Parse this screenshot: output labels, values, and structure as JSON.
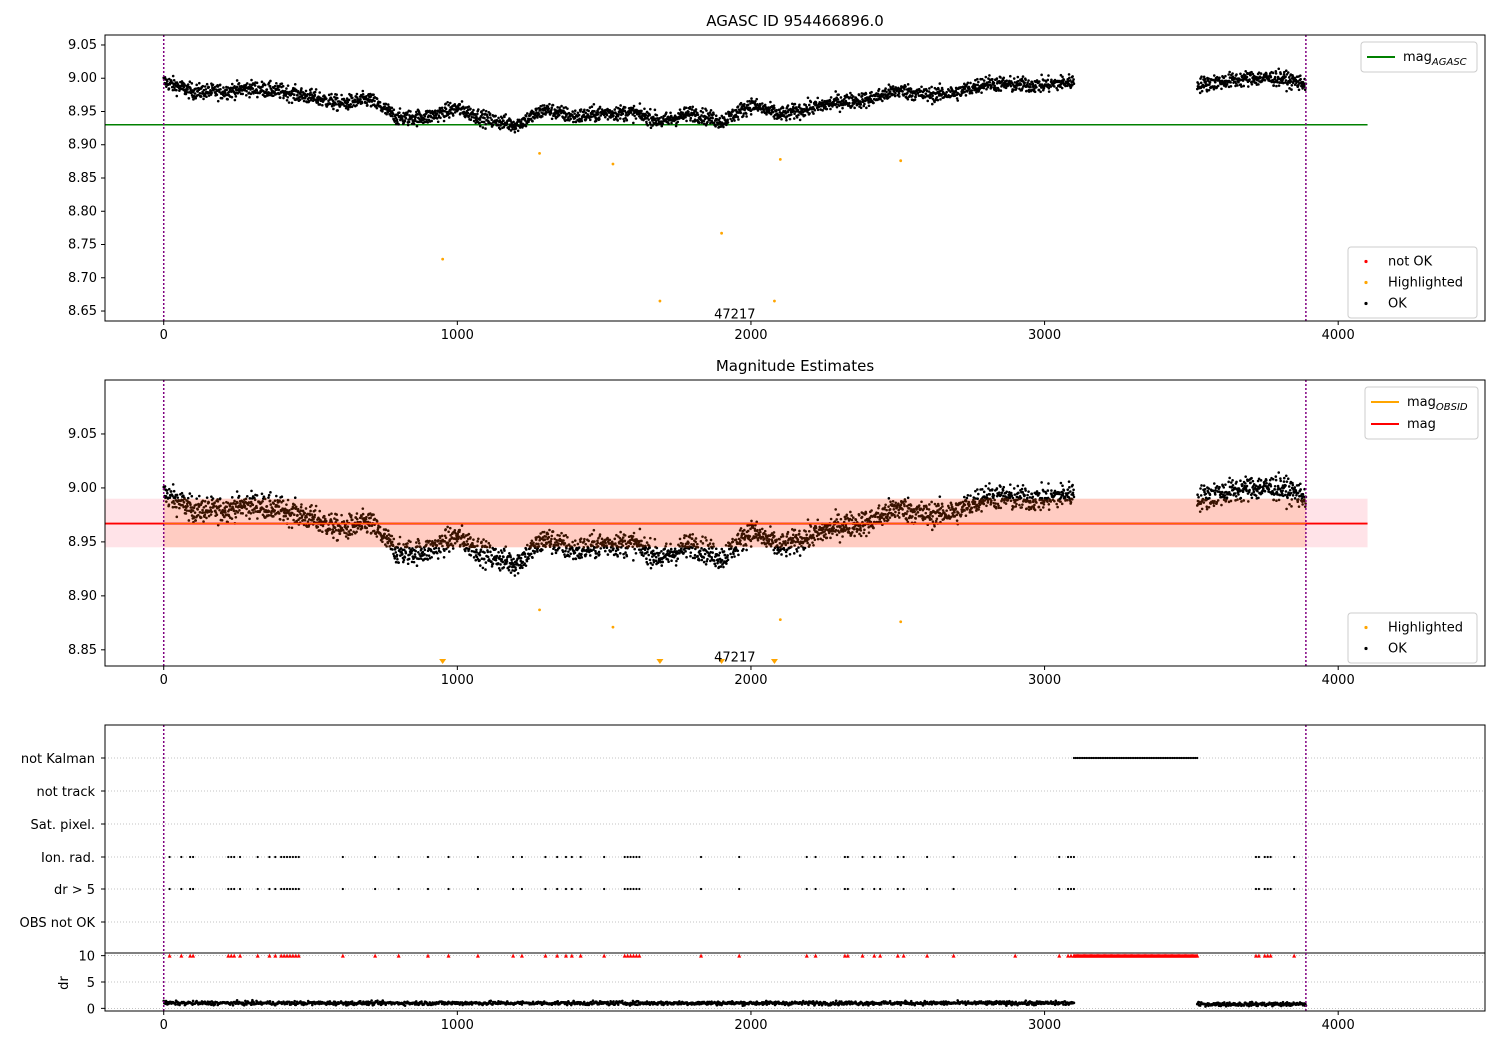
{
  "colors": {
    "ok": "#000000",
    "highlighted": "#ffa500",
    "not_ok": "#ff0000",
    "agasc_line": "#008000",
    "mag_line": "#ff0000",
    "obsid_line": "#ffa500",
    "band_outer": "#ffc0cb",
    "band_inner": "#ffa07a",
    "obs_boundary": "#800080",
    "grid": "#b0b0b0"
  },
  "chart_data": [
    {
      "type": "scatter",
      "title": "AGASC ID 954466896.0",
      "xlim": [
        -200,
        4500
      ],
      "ylim": [
        8.635,
        9.065
      ],
      "xticks": [
        0,
        1000,
        2000,
        3000,
        4000
      ],
      "yticks": [
        8.65,
        8.7,
        8.75,
        8.8,
        8.85,
        8.9,
        8.95,
        9.0,
        9.05
      ],
      "ytick_labels": [
        "8.65",
        "8.70",
        "8.75",
        "8.80",
        "8.85",
        "8.90",
        "8.95",
        "9.00",
        "9.05"
      ],
      "lines": [
        {
          "name": "mag_AGASC",
          "y": 8.93,
          "x": [
            -200,
            4100
          ],
          "color": "#008000"
        }
      ],
      "vlines": [
        0,
        3890
      ],
      "obsid_label": {
        "text": "47217",
        "x": 1945,
        "y": 8.645
      },
      "highlighted_points": [
        [
          950,
          8.728
        ],
        [
          1280,
          8.887
        ],
        [
          1530,
          8.871
        ],
        [
          1690,
          8.665
        ],
        [
          1900,
          8.767
        ],
        [
          2080,
          8.665
        ],
        [
          2100,
          8.878
        ],
        [
          2510,
          8.876
        ]
      ],
      "ok_segments": [
        {
          "x": [
            0,
            100,
            200,
            300,
            400,
            500,
            600,
            700,
            800,
            900,
            1000,
            1100,
            1200,
            1300,
            1400,
            1500,
            1600,
            1700,
            1800,
            1900,
            2000,
            2100,
            2200,
            2300,
            2400,
            2500,
            2600,
            2700,
            2800,
            2900,
            3000,
            3100
          ],
          "y": [
            8.995,
            8.98,
            8.98,
            8.985,
            8.98,
            8.972,
            8.962,
            8.968,
            8.94,
            8.942,
            8.955,
            8.938,
            8.93,
            8.953,
            8.942,
            8.948,
            8.948,
            8.935,
            8.948,
            8.935,
            8.96,
            8.945,
            8.955,
            8.965,
            8.968,
            8.982,
            8.975,
            8.978,
            8.993,
            8.99,
            8.99,
            8.995
          ]
        },
        {
          "x": [
            3520,
            3600,
            3700,
            3800,
            3890
          ],
          "y": [
            8.99,
            8.995,
            9.0,
            9.0,
            8.992
          ]
        }
      ],
      "legend_top": [
        {
          "label": "mag",
          "subscript": "AGASC",
          "kind": "line",
          "color": "#008000"
        }
      ],
      "legend_bottom": [
        {
          "label": "not OK",
          "kind": "dot",
          "color": "#ff0000"
        },
        {
          "label": "Highlighted",
          "kind": "dot",
          "color": "#ffa500"
        },
        {
          "label": "OK",
          "kind": "dot",
          "color": "#000000"
        }
      ]
    },
    {
      "type": "scatter",
      "title": "Magnitude Estimates",
      "xlim": [
        -200,
        4500
      ],
      "ylim": [
        8.835,
        9.1
      ],
      "xticks": [
        0,
        1000,
        2000,
        3000,
        4000
      ],
      "yticks": [
        8.85,
        8.9,
        8.95,
        9.0,
        9.05
      ],
      "ytick_labels": [
        "8.85",
        "8.90",
        "8.95",
        "9.00",
        "9.05"
      ],
      "band": {
        "x": [
          -200,
          4100
        ],
        "y_low": 8.945,
        "y_high": 8.99
      },
      "band_inner": {
        "x": [
          0,
          3890
        ],
        "y_low": 8.945,
        "y_high": 8.99
      },
      "lines": [
        {
          "name": "mag",
          "y": 8.967,
          "x": [
            -200,
            4100
          ],
          "color": "#ff0000"
        }
      ],
      "vlines": [
        0,
        3890
      ],
      "obsid_label": {
        "text": "47217",
        "x": 1945,
        "y": 8.843
      },
      "highlighted_points": [
        [
          1280,
          8.887
        ],
        [
          1530,
          8.871
        ],
        [
          2100,
          8.878
        ],
        [
          2510,
          8.876
        ]
      ],
      "clipped_markers_x": [
        950,
        1690,
        1900,
        2080
      ],
      "ok_segments": [
        {
          "x": [
            0,
            100,
            200,
            300,
            400,
            500,
            600,
            700,
            800,
            900,
            1000,
            1100,
            1200,
            1300,
            1400,
            1500,
            1600,
            1700,
            1800,
            1900,
            2000,
            2100,
            2200,
            2300,
            2400,
            2500,
            2600,
            2700,
            2800,
            2900,
            3000,
            3100
          ],
          "y": [
            8.995,
            8.98,
            8.98,
            8.985,
            8.98,
            8.972,
            8.962,
            8.968,
            8.94,
            8.942,
            8.955,
            8.938,
            8.93,
            8.953,
            8.942,
            8.948,
            8.948,
            8.935,
            8.948,
            8.935,
            8.96,
            8.945,
            8.955,
            8.965,
            8.968,
            8.982,
            8.975,
            8.978,
            8.993,
            8.99,
            8.99,
            8.995
          ]
        },
        {
          "x": [
            3520,
            3600,
            3700,
            3800,
            3890
          ],
          "y": [
            8.99,
            8.995,
            9.0,
            9.0,
            8.992
          ]
        }
      ],
      "legend_top": [
        {
          "label": "mag",
          "subscript": "OBSID",
          "kind": "line",
          "color": "#ffa500"
        },
        {
          "label": "mag",
          "subscript": "",
          "kind": "line",
          "color": "#ff0000"
        }
      ],
      "legend_bottom": [
        {
          "label": "Highlighted",
          "kind": "dot",
          "color": "#ffa500"
        },
        {
          "label": "OK",
          "kind": "dot",
          "color": "#000000"
        }
      ]
    },
    {
      "type": "scatter",
      "title": "",
      "xlim": [
        -200,
        4500
      ],
      "xticks": [
        0,
        1000,
        2000,
        3000,
        4000
      ],
      "flag_rows": [
        "not Kalman",
        "not track",
        "Sat. pixel.",
        "Ion. rad.",
        "dr > 5",
        "OBS not OK"
      ],
      "flags": {
        "not Kalman": [
          [
            3100,
            3520
          ]
        ],
        "not track": [],
        "Sat. pixel.": [],
        "Ion. rad.": [
          20,
          60,
          90,
          100,
          220,
          230,
          240,
          260,
          320,
          360,
          380,
          400,
          410,
          420,
          430,
          440,
          450,
          460,
          610,
          720,
          800,
          900,
          970,
          1070,
          1190,
          1220,
          1300,
          1340,
          1370,
          1390,
          1420,
          1500,
          1570,
          1580,
          1590,
          1600,
          1610,
          1620,
          1830,
          1960,
          2190,
          2220,
          2320,
          2330,
          2380,
          2420,
          2440,
          2500,
          2520,
          2600,
          2690,
          2900,
          3050,
          3080,
          3090,
          3100,
          3720,
          3730,
          3750,
          3760,
          3770,
          3850
        ],
        "dr > 5": [
          20,
          60,
          90,
          100,
          220,
          230,
          240,
          260,
          320,
          360,
          380,
          400,
          410,
          420,
          430,
          440,
          450,
          460,
          610,
          720,
          800,
          900,
          970,
          1070,
          1190,
          1220,
          1300,
          1340,
          1370,
          1390,
          1420,
          1500,
          1570,
          1580,
          1590,
          1600,
          1610,
          1620,
          1830,
          1960,
          2190,
          2220,
          2320,
          2330,
          2380,
          2420,
          2440,
          2500,
          2520,
          2600,
          2690,
          2900,
          3050,
          3080,
          3090,
          3100,
          3720,
          3730,
          3750,
          3760,
          3770,
          3850
        ],
        "OBS not OK": []
      },
      "dr_axis": {
        "ylabel": "dr",
        "ylim": [
          -0.5,
          10.5
        ],
        "yticks": [
          0,
          5,
          10
        ],
        "ytick_labels": [
          "0",
          "5",
          "10"
        ]
      },
      "dr_segments": [
        {
          "x_range": [
            0,
            3100
          ],
          "y": 1.0
        },
        {
          "x_range": [
            3520,
            3890
          ],
          "y": 0.8
        }
      ],
      "dr_clipped_x": [
        20,
        60,
        90,
        100,
        220,
        230,
        240,
        260,
        320,
        360,
        380,
        400,
        410,
        420,
        430,
        440,
        450,
        460,
        610,
        720,
        800,
        900,
        970,
        1070,
        1190,
        1220,
        1300,
        1340,
        1370,
        1390,
        1420,
        1500,
        1570,
        1580,
        1590,
        1600,
        1610,
        1620,
        1830,
        1960,
        2190,
        2220,
        2320,
        2330,
        2380,
        2420,
        2440,
        2500,
        2520,
        2600,
        2690,
        2900,
        3050,
        3080,
        3090,
        3100,
        3720,
        3730,
        3750,
        3760,
        3770,
        3850
      ],
      "dr_clipped_range": [
        3100,
        3520
      ],
      "vlines": [
        0,
        3890
      ]
    }
  ]
}
